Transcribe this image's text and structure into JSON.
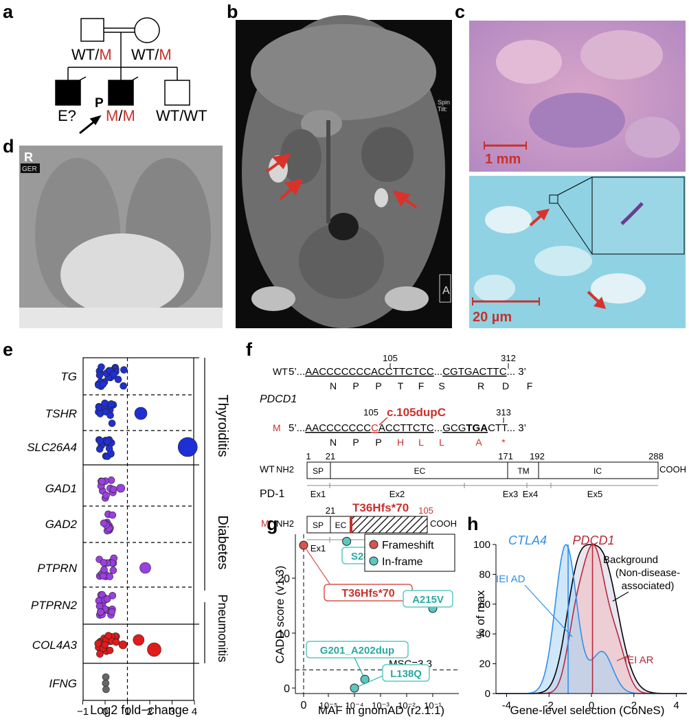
{
  "panel_labels": {
    "a": "a",
    "b": "b",
    "c": "c",
    "d": "d",
    "e": "e",
    "f": "f",
    "g": "g",
    "h": "h"
  },
  "pedigree": {
    "father_genotype": {
      "wt": "WT/",
      "m": "M"
    },
    "mother_genotype": {
      "wt": "WT/",
      "m": "M"
    },
    "sibling1_label": "E?",
    "proband_marker": "P",
    "proband_genotype": {
      "a": "M",
      "sep": "/",
      "b": "M"
    },
    "sibling3_genotype": "WT/WT"
  },
  "ct_scan": {
    "overlay_top": "Spin",
    "overlay_bot": "Tilt:",
    "corner_letter": "A"
  },
  "histology": {
    "top_scale": "1 mm",
    "bottom_scale": "20 µm"
  },
  "xray": {
    "marker": "R",
    "tag": "GER"
  },
  "panel_e": {
    "genes": [
      "TG",
      "TSHR",
      "SLC26A4",
      "GAD1",
      "GAD2",
      "PTPRN",
      "PTPRN2",
      "COL4A3",
      "IFNG"
    ],
    "groups": [
      "Thyroiditis",
      "Diabetes",
      "Pneumonitis"
    ],
    "xticks": [
      "−1",
      "0",
      "1",
      "2",
      "3",
      "4"
    ],
    "xlabel": "Log2 fold−change",
    "colors": {
      "thyroid": "#1f2fd6",
      "diabetes": "#9b3fe0",
      "pneumo": "#e01b1b",
      "ifng": "#666666"
    }
  },
  "panel_f": {
    "wt_label": "WT",
    "m_label": "M",
    "gene_label": "PDCD1",
    "five": "5’...",
    "three": "... 3’",
    "wt_seq_a": "AACCCCCCCACCTTCTCC",
    "wt_seq_b": "CGTGACTTC",
    "m_seq_a": "AACCCCCCC",
    "m_seq_ins": "C",
    "m_seq_c": "ACCTTCTC",
    "m_seq_d": "GCG",
    "m_seq_stop": "TGA",
    "m_seq_e": "CTT",
    "dots": "...",
    "pos_105": "105",
    "pos_312": "312",
    "pos_313": "313",
    "mutation": "c.105dupC",
    "wt_aa": [
      "N",
      "P",
      "P",
      "T",
      "F",
      "S",
      "R",
      "D",
      "F"
    ],
    "m_aa_black": [
      "N",
      "P",
      "P"
    ],
    "m_aa_red": [
      "H",
      "L",
      "L",
      "A",
      "*"
    ],
    "protein_label": "PD-1",
    "nh2": "NH2",
    "cooh": "COOH",
    "wt_positions": [
      "1",
      "21",
      "171",
      "192",
      "288"
    ],
    "domains": [
      "SP",
      "EC",
      "TM",
      "IC"
    ],
    "exons_wt": [
      "Ex1",
      "Ex2",
      "Ex3",
      "Ex4",
      "Ex5"
    ],
    "m_positions": [
      "21",
      "105"
    ],
    "m_domains": [
      "SP",
      "EC"
    ],
    "frameshift": "T36Hfs*70",
    "exons_m": [
      "Ex1",
      "Ex2"
    ]
  },
  "chart_data": [
    {
      "type": "scatter",
      "panel": "g",
      "xlabel": "MAF in gnomAD (r2.1.1)",
      "ylabel": "CADD score (v1.3)",
      "xticks": [
        "0",
        "10⁻⁵",
        "10⁻⁴",
        "10⁻³",
        "10⁻²",
        "10⁻¹"
      ],
      "yticks": [
        "0",
        "10",
        "20"
      ],
      "xlim_log10": [
        -5.6,
        -0.4
      ],
      "ylim": [
        -1,
        28
      ],
      "threshold": {
        "value": 3.3,
        "label": "MSC=3.3"
      },
      "legend": [
        "Frameshift",
        "In-frame"
      ],
      "series": [
        {
          "name": "Frameshift",
          "color": "#d9534f",
          "points": [
            {
              "label": "T36Hfs*70",
              "maf": "0",
              "cadd": 26
            }
          ]
        },
        {
          "name": "In-frame",
          "color": "#5bc8c0",
          "points": [
            {
              "label": "S285F",
              "maf_log10": -4.3,
              "cadd": 26.7
            },
            {
              "label": "A215V",
              "maf_log10": -1.0,
              "cadd": 14.5
            },
            {
              "label": "G201_A202dup",
              "maf_log10": -3.6,
              "cadd": 1.6
            },
            {
              "label": "L138Q",
              "maf_log10": -4.0,
              "cadd": 0
            }
          ]
        }
      ]
    },
    {
      "type": "area",
      "panel": "h",
      "xlabel": "Gene-level selection (CoNeS)",
      "ylabel": "% of max",
      "xticks": [
        "-4",
        "-2",
        "0",
        "2",
        "4"
      ],
      "yticks": [
        "0",
        "20",
        "40",
        "60",
        "80",
        "100"
      ],
      "xlim": [
        -4.5,
        4.5
      ],
      "ylim": [
        0,
        100
      ],
      "series": [
        {
          "name": "IEI AD",
          "gene": "CTLA4",
          "marker_x": -1.1
        },
        {
          "name": "IEI AR",
          "gene": "PDCD1",
          "marker_x": 0.05
        },
        {
          "name": "Background",
          "sub1": "(Non-disease-",
          "sub2": "associated)"
        }
      ]
    }
  ]
}
